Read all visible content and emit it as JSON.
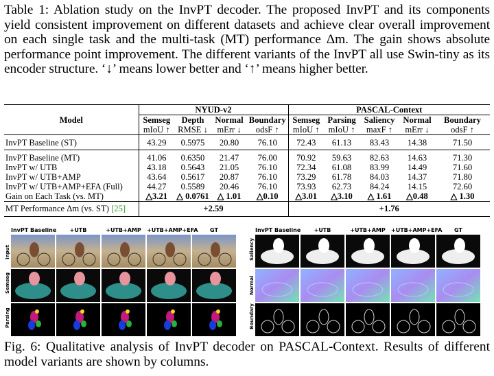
{
  "table_caption": {
    "label": "Table 1:",
    "text": "Ablation study on the InvPT decoder. The proposed InvPT and its components yield consistent improvement on different datasets and achieve clear overall improvement on each single task and the multi-task (MT) performance Δm. The gain shows absolute performance point improvement. The different variants of the InvPT all use Swin-tiny as its encoder structure. ‘↓’ means lower better and ‘↑’ means higher better."
  },
  "table": {
    "model_header": "Model",
    "group_headers": [
      "NYUD-v2",
      "PASCAL-Context"
    ],
    "task_headers": [
      "Semseg",
      "Depth",
      "Normal",
      "Boundary",
      "Semseg",
      "Parsing",
      "Saliency",
      "Normal",
      "Boundary"
    ],
    "metric_headers": [
      "mIoU ↑",
      "RMSE ↓",
      "mErr ↓",
      "odsF ↑",
      "mIoU ↑",
      "mIoU ↑",
      "maxF ↑",
      "mErr ↓",
      "odsF ↑"
    ],
    "baseline_st": {
      "label": "InvPT Baseline (ST)",
      "values": [
        "43.29",
        "0.5975",
        "20.80",
        "76.10",
        "72.43",
        "61.13",
        "83.43",
        "14.38",
        "71.50"
      ]
    },
    "rows": [
      {
        "label": "InvPT Baseline (MT)",
        "values": [
          "41.06",
          "0.6350",
          "21.47",
          "76.00",
          "70.92",
          "59.63",
          "82.63",
          "14.63",
          "71.30"
        ]
      },
      {
        "label": "InvPT w/ UTB",
        "values": [
          "43.18",
          "0.5643",
          "21.05",
          "76.10",
          "72.34",
          "61.08",
          "83.99",
          "14.49",
          "71.60"
        ]
      },
      {
        "label": "InvPT w/ UTB+AMP",
        "values": [
          "43.64",
          "0.5617",
          "20.87",
          "76.10",
          "73.29",
          "61.78",
          "84.03",
          "14.37",
          "71.80"
        ]
      },
      {
        "label": "InvPT w/ UTB+AMP+EFA (Full)",
        "values": [
          "44.27",
          "0.5589",
          "20.46",
          "76.10",
          "73.93",
          "62.73",
          "84.24",
          "14.15",
          "72.60"
        ]
      }
    ],
    "gain_row": {
      "label": "Gain on Each Task (vs. MT)",
      "values": [
        "△3.21",
        "△ 0.0761",
        "△ 1.01",
        "△0.10",
        "△3.01",
        "△3.10",
        "△ 1.61",
        "△0.48",
        "△ 1.30"
      ]
    },
    "mt_row": {
      "label_prefix": "MT Performance Δm (vs. ST)",
      "cite": "[25]",
      "values": [
        "+2.59",
        "+1.76"
      ]
    }
  },
  "figure": {
    "left_columns": [
      "InvPT Baseline",
      "+UTB",
      "+UTB+AMP",
      "+UTB+AMP+EFA",
      "GT"
    ],
    "right_columns": [
      "InvPT Baseline",
      "+UTB",
      "+UTB+AMP",
      "+UTB+AMP+EFA",
      "GT"
    ],
    "left_rows": [
      "Input",
      "Semseg",
      "Parsing"
    ],
    "right_rows": [
      "Saliency",
      "Normal",
      "Boundary"
    ]
  },
  "figure_caption": {
    "label": "Fig. 6:",
    "text": "Qualitative analysis of InvPT decoder on PASCAL-Context. Results of different model variants are shown by columns."
  }
}
